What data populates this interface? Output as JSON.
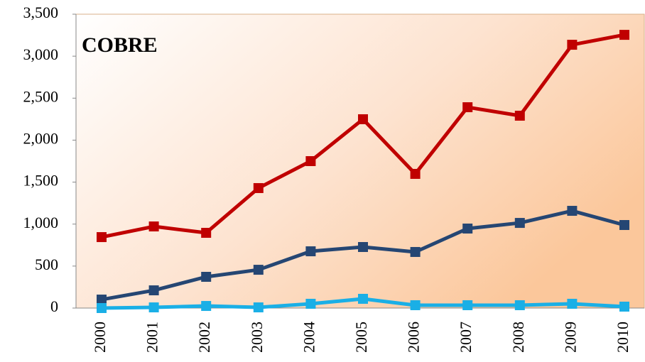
{
  "chart_data": {
    "type": "line",
    "title": "COBRE",
    "categories": [
      "2000",
      "2001",
      "2002",
      "2003",
      "2004",
      "2005",
      "2006",
      "2007",
      "2008",
      "2009",
      "2010"
    ],
    "series": [
      {
        "color": "#c00000",
        "values": [
          845,
          972,
          896,
          1429,
          1750,
          2249,
          1598,
          2392,
          2291,
          3136,
          3254
        ]
      },
      {
        "color": "#254673",
        "values": [
          101,
          211,
          372,
          456,
          676,
          727,
          668,
          947,
          1014,
          1158,
          989
        ]
      },
      {
        "color": "#1aafe6",
        "values": [
          0,
          8,
          25,
          8,
          51,
          110,
          34,
          34,
          34,
          51,
          17
        ]
      }
    ],
    "ylim": [
      0,
      3500
    ],
    "yticks": [
      0,
      500,
      {
        "value": 1000,
        "label": "1,000"
      },
      {
        "value": 1500,
        "label": "1,500"
      },
      {
        "value": 2000,
        "label": "2,000"
      },
      {
        "value": 2500,
        "label": "2,500"
      },
      {
        "value": 3000,
        "label": "3,000"
      },
      {
        "value": 3500,
        "label": "3,500"
      }
    ],
    "grid": false
  }
}
